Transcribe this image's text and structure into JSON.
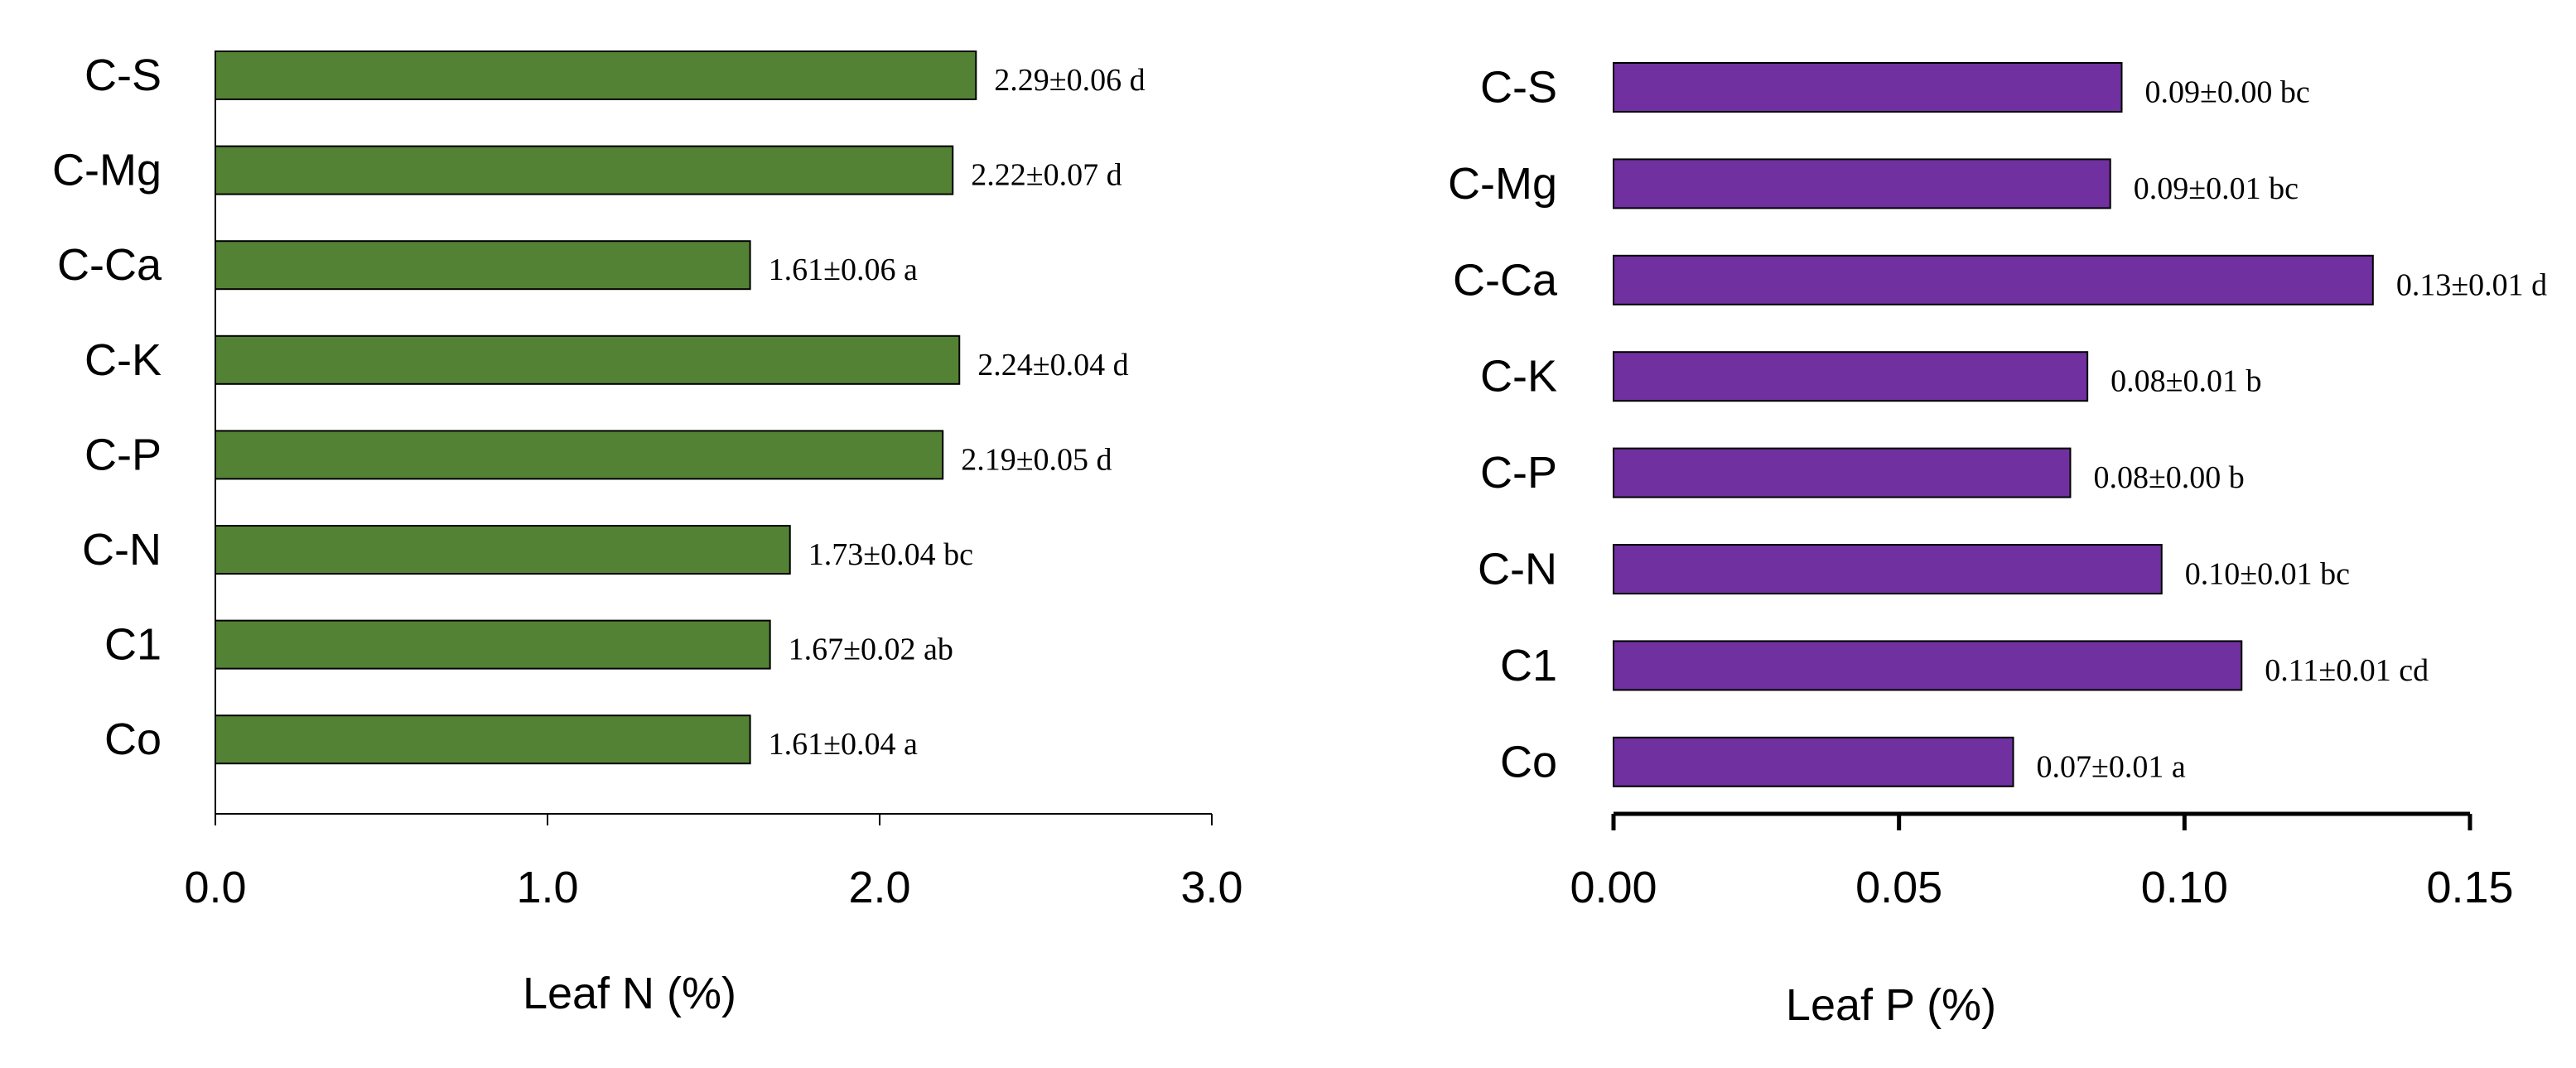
{
  "chart_data": [
    {
      "type": "bar",
      "orientation": "horizontal",
      "title": "",
      "xlabel": "Leaf N (%)",
      "ylabel": "",
      "xlim": [
        0,
        3
      ],
      "ticks": [
        0,
        1,
        2,
        3
      ],
      "tick_labels": [
        "0.0",
        "1.0",
        "2.0",
        "3.0"
      ],
      "categories": [
        "C-S",
        "C-Mg",
        "C-Ca",
        "C-K",
        "C-P",
        "C-N",
        "C1",
        "Co"
      ],
      "values": [
        2.29,
        2.22,
        1.61,
        2.24,
        2.19,
        1.73,
        1.67,
        1.61
      ],
      "data_labels": [
        "2.29±0.06 d",
        "2.22±0.07 d",
        "1.61±0.06 a",
        "2.24±0.04 d",
        "2.19±0.05 d",
        "1.73±0.04 bc",
        "1.67±0.02 ab",
        "1.61±0.04 a"
      ],
      "color": "#548235",
      "grid": false
    },
    {
      "type": "bar",
      "orientation": "horizontal",
      "title": "",
      "xlabel": "Leaf P (%)",
      "ylabel": "",
      "xlim": [
        0,
        0.15
      ],
      "ticks": [
        0,
        0.05,
        0.1,
        0.15
      ],
      "tick_labels": [
        "0.00",
        "0.05",
        "0.10",
        "0.15"
      ],
      "categories": [
        "C-S",
        "C-Mg",
        "C-Ca",
        "C-K",
        "C-P",
        "C-N",
        "C1",
        "Co"
      ],
      "values": [
        0.089,
        0.087,
        0.133,
        0.083,
        0.08,
        0.096,
        0.11,
        0.07
      ],
      "data_labels": [
        "0.09±0.00 bc",
        "0.09±0.01 bc",
        "0.13±0.01 d",
        "0.08±0.01 b",
        "0.08±0.00 b",
        "0.10±0.01 bc",
        "0.11±0.01 cd",
        "0.07±0.01 a"
      ],
      "color": "#7030A0",
      "grid": false
    }
  ]
}
